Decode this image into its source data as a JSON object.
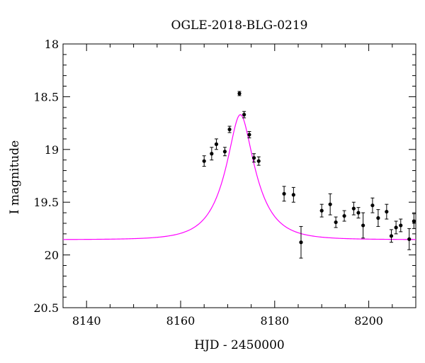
{
  "chart_data": {
    "type": "scatter",
    "title": "OGLE-2018-BLG-0219",
    "xlabel": "HJD - 2450000",
    "ylabel": "I magnitude",
    "xlim": [
      8135,
      8210
    ],
    "ylim": [
      20.5,
      18
    ],
    "y_inverted": true,
    "xticks": [
      8140,
      8160,
      8180,
      8200
    ],
    "xtick_labels": [
      "8140",
      "8160",
      "8180",
      "8200"
    ],
    "yticks": [
      18,
      18.5,
      19,
      19.5,
      20,
      20.5
    ],
    "ytick_labels": [
      "18",
      "18.5",
      "19",
      "19.5",
      "20",
      "20.5"
    ],
    "grid": false,
    "series": [
      {
        "kind": "points",
        "color": "#000000",
        "points": [
          {
            "x": 8165.0,
            "y": 19.11,
            "err": 0.05
          },
          {
            "x": 8166.6,
            "y": 19.04,
            "err": 0.06
          },
          {
            "x": 8167.6,
            "y": 18.95,
            "err": 0.05
          },
          {
            "x": 8169.4,
            "y": 19.02,
            "err": 0.04
          },
          {
            "x": 8170.4,
            "y": 18.81,
            "err": 0.03
          },
          {
            "x": 8172.5,
            "y": 18.47,
            "err": 0.02
          },
          {
            "x": 8173.5,
            "y": 18.67,
            "err": 0.03
          },
          {
            "x": 8174.6,
            "y": 18.86,
            "err": 0.03
          },
          {
            "x": 8175.6,
            "y": 19.08,
            "err": 0.04
          },
          {
            "x": 8176.6,
            "y": 19.11,
            "err": 0.04
          },
          {
            "x": 8182.0,
            "y": 19.42,
            "err": 0.07
          },
          {
            "x": 8184.0,
            "y": 19.43,
            "err": 0.07
          },
          {
            "x": 8185.6,
            "y": 19.88,
            "err": 0.15
          },
          {
            "x": 8190.0,
            "y": 19.58,
            "err": 0.06
          },
          {
            "x": 8191.8,
            "y": 19.52,
            "err": 0.1
          },
          {
            "x": 8193.0,
            "y": 19.69,
            "err": 0.05
          },
          {
            "x": 8194.8,
            "y": 19.63,
            "err": 0.05
          },
          {
            "x": 8196.8,
            "y": 19.56,
            "err": 0.06
          },
          {
            "x": 8197.8,
            "y": 19.6,
            "err": 0.05
          },
          {
            "x": 8198.8,
            "y": 19.72,
            "err": 0.12
          },
          {
            "x": 8200.8,
            "y": 19.53,
            "err": 0.07
          },
          {
            "x": 8202.0,
            "y": 19.65,
            "err": 0.08
          },
          {
            "x": 8203.8,
            "y": 19.59,
            "err": 0.07
          },
          {
            "x": 8204.8,
            "y": 19.82,
            "err": 0.06
          },
          {
            "x": 8205.8,
            "y": 19.74,
            "err": 0.06
          },
          {
            "x": 8206.8,
            "y": 19.72,
            "err": 0.06
          },
          {
            "x": 8208.6,
            "y": 19.85,
            "err": 0.1
          },
          {
            "x": 8209.6,
            "y": 19.68,
            "err": 0.07
          }
        ]
      },
      {
        "kind": "model",
        "color": "#ff00ff",
        "baseline": 19.855,
        "peak_mag": 18.67,
        "t0": 8172.7,
        "tE": 6.3
      }
    ]
  }
}
